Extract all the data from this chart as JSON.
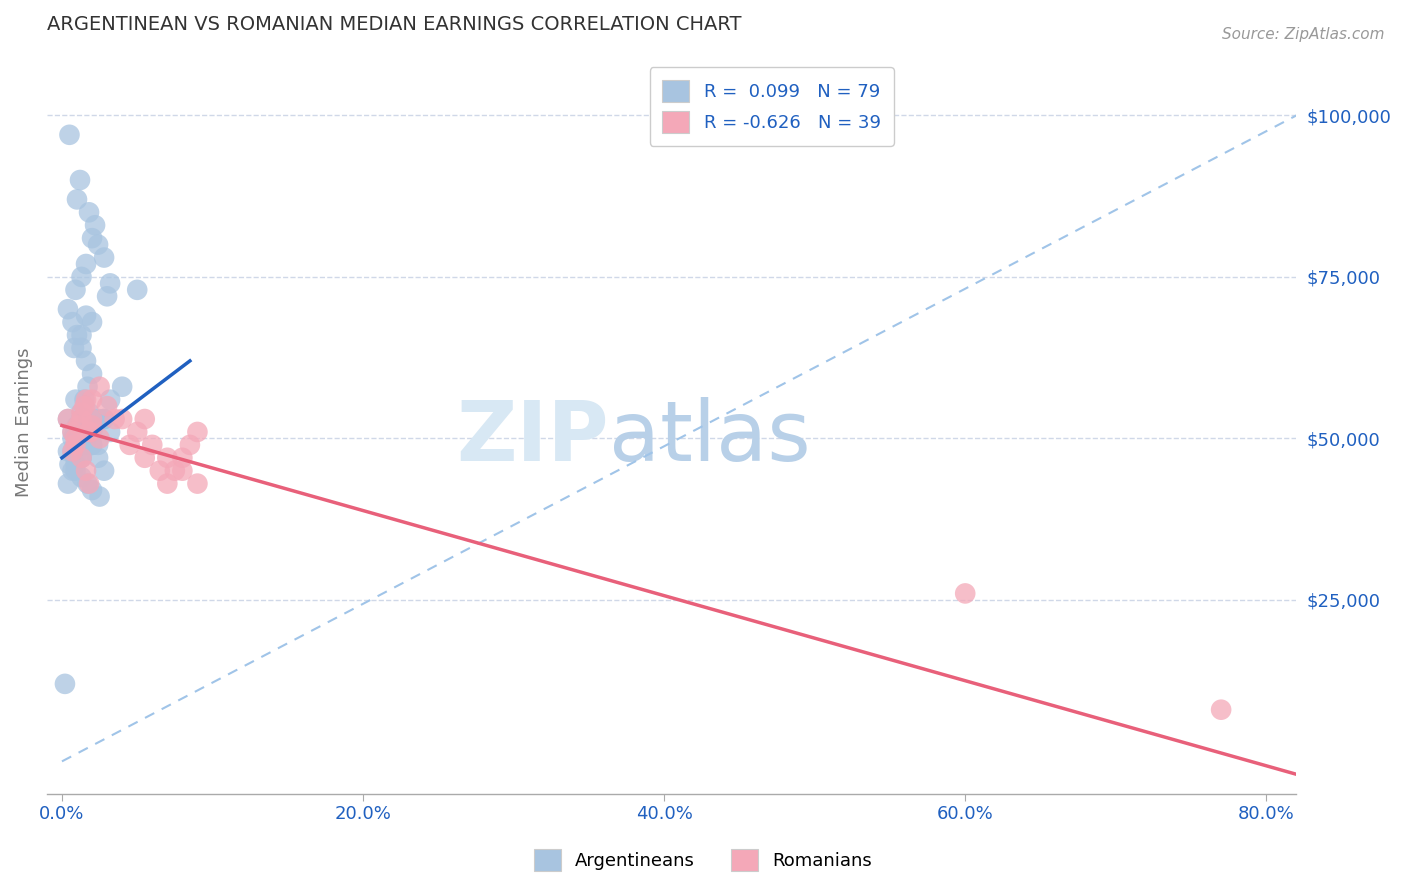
{
  "title": "ARGENTINEAN VS ROMANIAN MEDIAN EARNINGS CORRELATION CHART",
  "source_text": "Source: ZipAtlas.com",
  "ylabel": "Median Earnings",
  "xlabel_ticks": [
    "0.0%",
    "20.0%",
    "40.0%",
    "60.0%",
    "80.0%"
  ],
  "xlabel_vals": [
    0.0,
    0.2,
    0.4,
    0.6,
    0.8
  ],
  "ylabel_ticks": [
    "$25,000",
    "$50,000",
    "$75,000",
    "$100,000"
  ],
  "ylabel_vals": [
    25000,
    50000,
    75000,
    100000
  ],
  "xlim": [
    -0.01,
    0.82
  ],
  "ylim": [
    -5000,
    110000
  ],
  "blue_R": "0.099",
  "blue_N": "79",
  "pink_R": "-0.626",
  "pink_N": "39",
  "blue_color": "#a8c4e0",
  "pink_color": "#f4a8b8",
  "blue_line_color": "#2060c0",
  "pink_line_color": "#e8607a",
  "dashed_line_color": "#a0c4e8",
  "legend_text_color": "#2060c0",
  "title_color": "#333333",
  "axis_label_color": "#2060c0",
  "watermark_color": "#dce8f5",
  "grid_color": "#d0d8e8",
  "blue_line_x": [
    0.0,
    0.085
  ],
  "blue_line_y": [
    47000,
    62000
  ],
  "dashed_line_x": [
    0.0,
    0.82
  ],
  "dashed_line_y": [
    0,
    100000
  ],
  "pink_line_x": [
    0.0,
    0.82
  ],
  "pink_line_y": [
    52000,
    -2000
  ],
  "argentinean_x": [
    0.005,
    0.012,
    0.01,
    0.018,
    0.022,
    0.02,
    0.024,
    0.028,
    0.032,
    0.03,
    0.016,
    0.02,
    0.013,
    0.008,
    0.016,
    0.013,
    0.009,
    0.004,
    0.007,
    0.01,
    0.013,
    0.016,
    0.02,
    0.017,
    0.015,
    0.018,
    0.015,
    0.01,
    0.007,
    0.005,
    0.009,
    0.013,
    0.01,
    0.007,
    0.004,
    0.009,
    0.013,
    0.017,
    0.02,
    0.025,
    0.028,
    0.032,
    0.02,
    0.016,
    0.013,
    0.009,
    0.004,
    0.007,
    0.01,
    0.013,
    0.017,
    0.02,
    0.024,
    0.028,
    0.032,
    0.02,
    0.009,
    0.013,
    0.017,
    0.02,
    0.04,
    0.05,
    0.013,
    0.017,
    0.02,
    0.024,
    0.028,
    0.02,
    0.017,
    0.013,
    0.009,
    0.007,
    0.004,
    0.002,
    0.013,
    0.017,
    0.02,
    0.024,
    0.017
  ],
  "argentinean_y": [
    97000,
    90000,
    87000,
    85000,
    83000,
    81000,
    80000,
    78000,
    74000,
    72000,
    69000,
    68000,
    66000,
    64000,
    77000,
    75000,
    73000,
    70000,
    68000,
    66000,
    64000,
    62000,
    60000,
    58000,
    56000,
    54000,
    52000,
    50000,
    48000,
    46000,
    56000,
    54000,
    52000,
    50000,
    48000,
    46000,
    44000,
    43000,
    42000,
    41000,
    53000,
    56000,
    51000,
    49000,
    47000,
    45000,
    53000,
    51000,
    49000,
    47000,
    53000,
    51000,
    49000,
    53000,
    51000,
    53000,
    51000,
    49000,
    53000,
    51000,
    58000,
    73000,
    53000,
    51000,
    49000,
    47000,
    45000,
    53000,
    51000,
    49000,
    47000,
    45000,
    43000,
    12000,
    53000,
    51000,
    49000,
    53000,
    51000
  ],
  "romanian_x": [
    0.004,
    0.007,
    0.009,
    0.013,
    0.016,
    0.018,
    0.02,
    0.019,
    0.016,
    0.013,
    0.011,
    0.009,
    0.007,
    0.013,
    0.018,
    0.02,
    0.025,
    0.015,
    0.02,
    0.025,
    0.035,
    0.045,
    0.055,
    0.065,
    0.07,
    0.075,
    0.08,
    0.085,
    0.09,
    0.055,
    0.03,
    0.04,
    0.05,
    0.06,
    0.07,
    0.08,
    0.09,
    0.6,
    0.77
  ],
  "romanian_y": [
    53000,
    51000,
    49000,
    47000,
    45000,
    43000,
    53000,
    51000,
    56000,
    54000,
    52000,
    50000,
    48000,
    53000,
    51000,
    56000,
    58000,
    55000,
    52000,
    50000,
    53000,
    49000,
    47000,
    45000,
    43000,
    45000,
    47000,
    49000,
    51000,
    53000,
    55000,
    53000,
    51000,
    49000,
    47000,
    45000,
    43000,
    26000,
    8000
  ]
}
